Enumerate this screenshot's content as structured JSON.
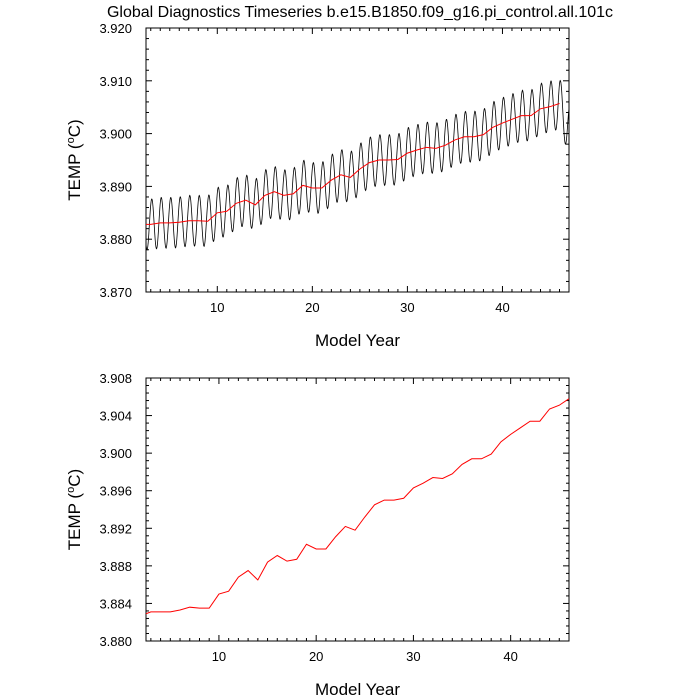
{
  "title": "Global Diagnostics Timeseries b.e15.B1850.f09_g16.pi_control.all.101c",
  "chart_data": [
    {
      "type": "line",
      "xlabel": "Model Year",
      "ylabel_main": "TEMP (",
      "ylabel_sup": "o",
      "ylabel_unit": "C)",
      "xlim": [
        2.5,
        47
      ],
      "ylim": [
        3.87,
        3.92
      ],
      "xticks": [
        10,
        20,
        30,
        40
      ],
      "yticks": [
        3.87,
        3.88,
        3.89,
        3.9,
        3.91,
        3.92
      ],
      "ytick_labels": [
        "3.870",
        "3.880",
        "3.890",
        "3.900",
        "3.910",
        "3.920"
      ],
      "series": [
        {
          "color": "#000000",
          "seasonal": true,
          "amplitude": 0.0048,
          "x_start": 2.5,
          "x_end": 47,
          "annual_years": [
            2,
            3,
            4,
            5,
            6,
            7,
            8,
            9,
            10,
            11,
            12,
            13,
            14,
            15,
            16,
            17,
            18,
            19,
            20,
            21,
            22,
            23,
            24,
            25,
            26,
            27,
            28,
            29,
            30,
            31,
            32,
            33,
            34,
            35,
            36,
            37,
            38,
            39,
            40,
            41,
            42,
            43,
            44,
            45,
            46,
            47
          ],
          "annual_mean": [
            3.8828,
            3.8828,
            3.8831,
            3.8831,
            3.8832,
            3.8835,
            3.8835,
            3.8834,
            3.885,
            3.8853,
            3.8868,
            3.8874,
            3.8865,
            3.8883,
            3.889,
            3.8883,
            3.8886,
            3.8902,
            3.8897,
            3.8897,
            3.8912,
            3.8922,
            3.8917,
            3.8933,
            3.8945,
            3.895,
            3.895,
            3.8951,
            3.8963,
            3.8969,
            3.8974,
            3.8972,
            3.8978,
            3.8988,
            3.8994,
            3.8994,
            3.8998,
            3.9012,
            3.902,
            3.9027,
            3.9034,
            3.9034,
            3.9047,
            3.9051,
            3.9057,
            3.901
          ]
        },
        {
          "color": "#ff0000",
          "x": [
            2,
            3,
            4,
            5,
            6,
            7,
            8,
            9,
            10,
            11,
            12,
            13,
            14,
            15,
            16,
            17,
            18,
            19,
            20,
            21,
            22,
            23,
            24,
            25,
            26,
            27,
            28,
            29,
            30,
            31,
            32,
            33,
            34,
            35,
            36,
            37,
            38,
            39,
            40,
            41,
            42,
            43,
            44,
            45,
            46
          ],
          "values": [
            3.8828,
            3.8828,
            3.8831,
            3.8831,
            3.8832,
            3.8835,
            3.8835,
            3.8834,
            3.885,
            3.8853,
            3.8868,
            3.8874,
            3.8865,
            3.8883,
            3.889,
            3.8883,
            3.8886,
            3.8902,
            3.8897,
            3.8897,
            3.8912,
            3.8922,
            3.8917,
            3.8933,
            3.8945,
            3.895,
            3.895,
            3.8951,
            3.8963,
            3.8969,
            3.8974,
            3.8972,
            3.8978,
            3.8988,
            3.8994,
            3.8994,
            3.8998,
            3.9012,
            3.902,
            3.9027,
            3.9034,
            3.9034,
            3.9047,
            3.9051,
            3.9057
          ]
        }
      ]
    },
    {
      "type": "line",
      "xlabel": "Model Year",
      "ylabel_main": "TEMP (",
      "ylabel_sup": "o",
      "ylabel_unit": "C)",
      "xlim": [
        2.5,
        46
      ],
      "ylim": [
        3.88,
        3.908
      ],
      "xticks": [
        10,
        20,
        30,
        40
      ],
      "yticks": [
        3.88,
        3.884,
        3.888,
        3.892,
        3.896,
        3.9,
        3.904,
        3.908
      ],
      "ytick_labels": [
        "3.880",
        "3.884",
        "3.888",
        "3.892",
        "3.896",
        "3.900",
        "3.904",
        "3.908"
      ],
      "series": [
        {
          "color": "#ff0000",
          "x": [
            2.5,
            3,
            4,
            5,
            6,
            7,
            8,
            9,
            10,
            11,
            12,
            13,
            14,
            15,
            16,
            17,
            18,
            19,
            20,
            21,
            22,
            23,
            24,
            25,
            26,
            27,
            28,
            29,
            30,
            31,
            32,
            33,
            34,
            35,
            36,
            37,
            38,
            39,
            40,
            41,
            42,
            43,
            44,
            45,
            46
          ],
          "values": [
            3.8829,
            3.8831,
            3.8831,
            3.8831,
            3.8833,
            3.8836,
            3.8835,
            3.8835,
            3.885,
            3.8853,
            3.8868,
            3.8875,
            3.8865,
            3.8884,
            3.8891,
            3.8885,
            3.8887,
            3.8903,
            3.8898,
            3.8898,
            3.8911,
            3.8922,
            3.8918,
            3.8932,
            3.8945,
            3.895,
            3.895,
            3.8952,
            3.8963,
            3.8968,
            3.8974,
            3.8973,
            3.8978,
            3.8988,
            3.8994,
            3.8994,
            3.8999,
            3.9012,
            3.902,
            3.9027,
            3.9034,
            3.9034,
            3.9047,
            3.9051,
            3.9058
          ]
        }
      ]
    }
  ]
}
